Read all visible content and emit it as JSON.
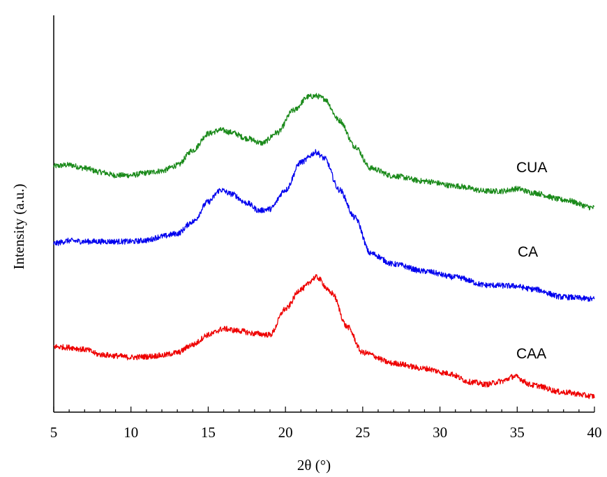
{
  "chart_data": {
    "type": "line",
    "xlabel": "2θ (°)",
    "ylabel": "Intensity (a.u.)",
    "xlim": [
      5,
      40
    ],
    "ylim": [
      0,
      1
    ],
    "x_ticks": [
      "5",
      "10",
      "15",
      "20",
      "25",
      "30",
      "35",
      "40"
    ],
    "y_ticks_shown": false,
    "grid": false,
    "legend": "inline labels at right",
    "series": [
      {
        "name": "CUA",
        "color": "#1a8a1a",
        "points": [
          [
            5,
            0.62
          ],
          [
            6,
            0.623
          ],
          [
            7,
            0.615
          ],
          [
            8,
            0.605
          ],
          [
            9,
            0.597
          ],
          [
            10,
            0.597
          ],
          [
            11,
            0.603
          ],
          [
            12,
            0.608
          ],
          [
            13,
            0.622
          ],
          [
            14,
            0.66
          ],
          [
            15,
            0.702
          ],
          [
            15.8,
            0.711
          ],
          [
            16.5,
            0.705
          ],
          [
            17.5,
            0.69
          ],
          [
            18.5,
            0.678
          ],
          [
            19.5,
            0.705
          ],
          [
            20.5,
            0.76
          ],
          [
            21.5,
            0.795
          ],
          [
            22,
            0.797
          ],
          [
            22.5,
            0.79
          ],
          [
            23.5,
            0.735
          ],
          [
            24.5,
            0.67
          ],
          [
            25.5,
            0.615
          ],
          [
            27,
            0.595
          ],
          [
            29,
            0.582
          ],
          [
            31,
            0.57
          ],
          [
            33,
            0.557
          ],
          [
            34,
            0.557
          ],
          [
            35,
            0.563
          ],
          [
            36,
            0.553
          ],
          [
            38,
            0.535
          ],
          [
            40,
            0.515
          ]
        ]
      },
      {
        "name": "CA",
        "color": "#0000ee",
        "points": [
          [
            5,
            0.425
          ],
          [
            6,
            0.432
          ],
          [
            7,
            0.43
          ],
          [
            8,
            0.43
          ],
          [
            9,
            0.43
          ],
          [
            10,
            0.43
          ],
          [
            11,
            0.433
          ],
          [
            12,
            0.443
          ],
          [
            13,
            0.45
          ],
          [
            14,
            0.48
          ],
          [
            15,
            0.53
          ],
          [
            15.8,
            0.56
          ],
          [
            16.5,
            0.55
          ],
          [
            17.5,
            0.527
          ],
          [
            18.3,
            0.508
          ],
          [
            19,
            0.512
          ],
          [
            20,
            0.56
          ],
          [
            21,
            0.63
          ],
          [
            22,
            0.655
          ],
          [
            22.5,
            0.64
          ],
          [
            23.5,
            0.56
          ],
          [
            24.5,
            0.49
          ],
          [
            25.5,
            0.4
          ],
          [
            27,
            0.373
          ],
          [
            29,
            0.355
          ],
          [
            31,
            0.34
          ],
          [
            33,
            0.32
          ],
          [
            34.8,
            0.318
          ],
          [
            36,
            0.31
          ],
          [
            38,
            0.29
          ],
          [
            40,
            0.285
          ]
        ]
      },
      {
        "name": "CAA",
        "color": "#ee0000",
        "points": [
          [
            5,
            0.165
          ],
          [
            6,
            0.163
          ],
          [
            7,
            0.158
          ],
          [
            8,
            0.145
          ],
          [
            9,
            0.142
          ],
          [
            10,
            0.138
          ],
          [
            11,
            0.14
          ],
          [
            12,
            0.143
          ],
          [
            13,
            0.15
          ],
          [
            14,
            0.17
          ],
          [
            15,
            0.195
          ],
          [
            16,
            0.21
          ],
          [
            17,
            0.205
          ],
          [
            18,
            0.198
          ],
          [
            19,
            0.195
          ],
          [
            20,
            0.26
          ],
          [
            21,
            0.31
          ],
          [
            22,
            0.34
          ],
          [
            23,
            0.3
          ],
          [
            24,
            0.215
          ],
          [
            25,
            0.15
          ],
          [
            27,
            0.123
          ],
          [
            29,
            0.11
          ],
          [
            30.5,
            0.098
          ],
          [
            32,
            0.076
          ],
          [
            33,
            0.07
          ],
          [
            34,
            0.078
          ],
          [
            34.8,
            0.09
          ],
          [
            36,
            0.068
          ],
          [
            38,
            0.05
          ],
          [
            40,
            0.04
          ]
        ]
      }
    ]
  }
}
